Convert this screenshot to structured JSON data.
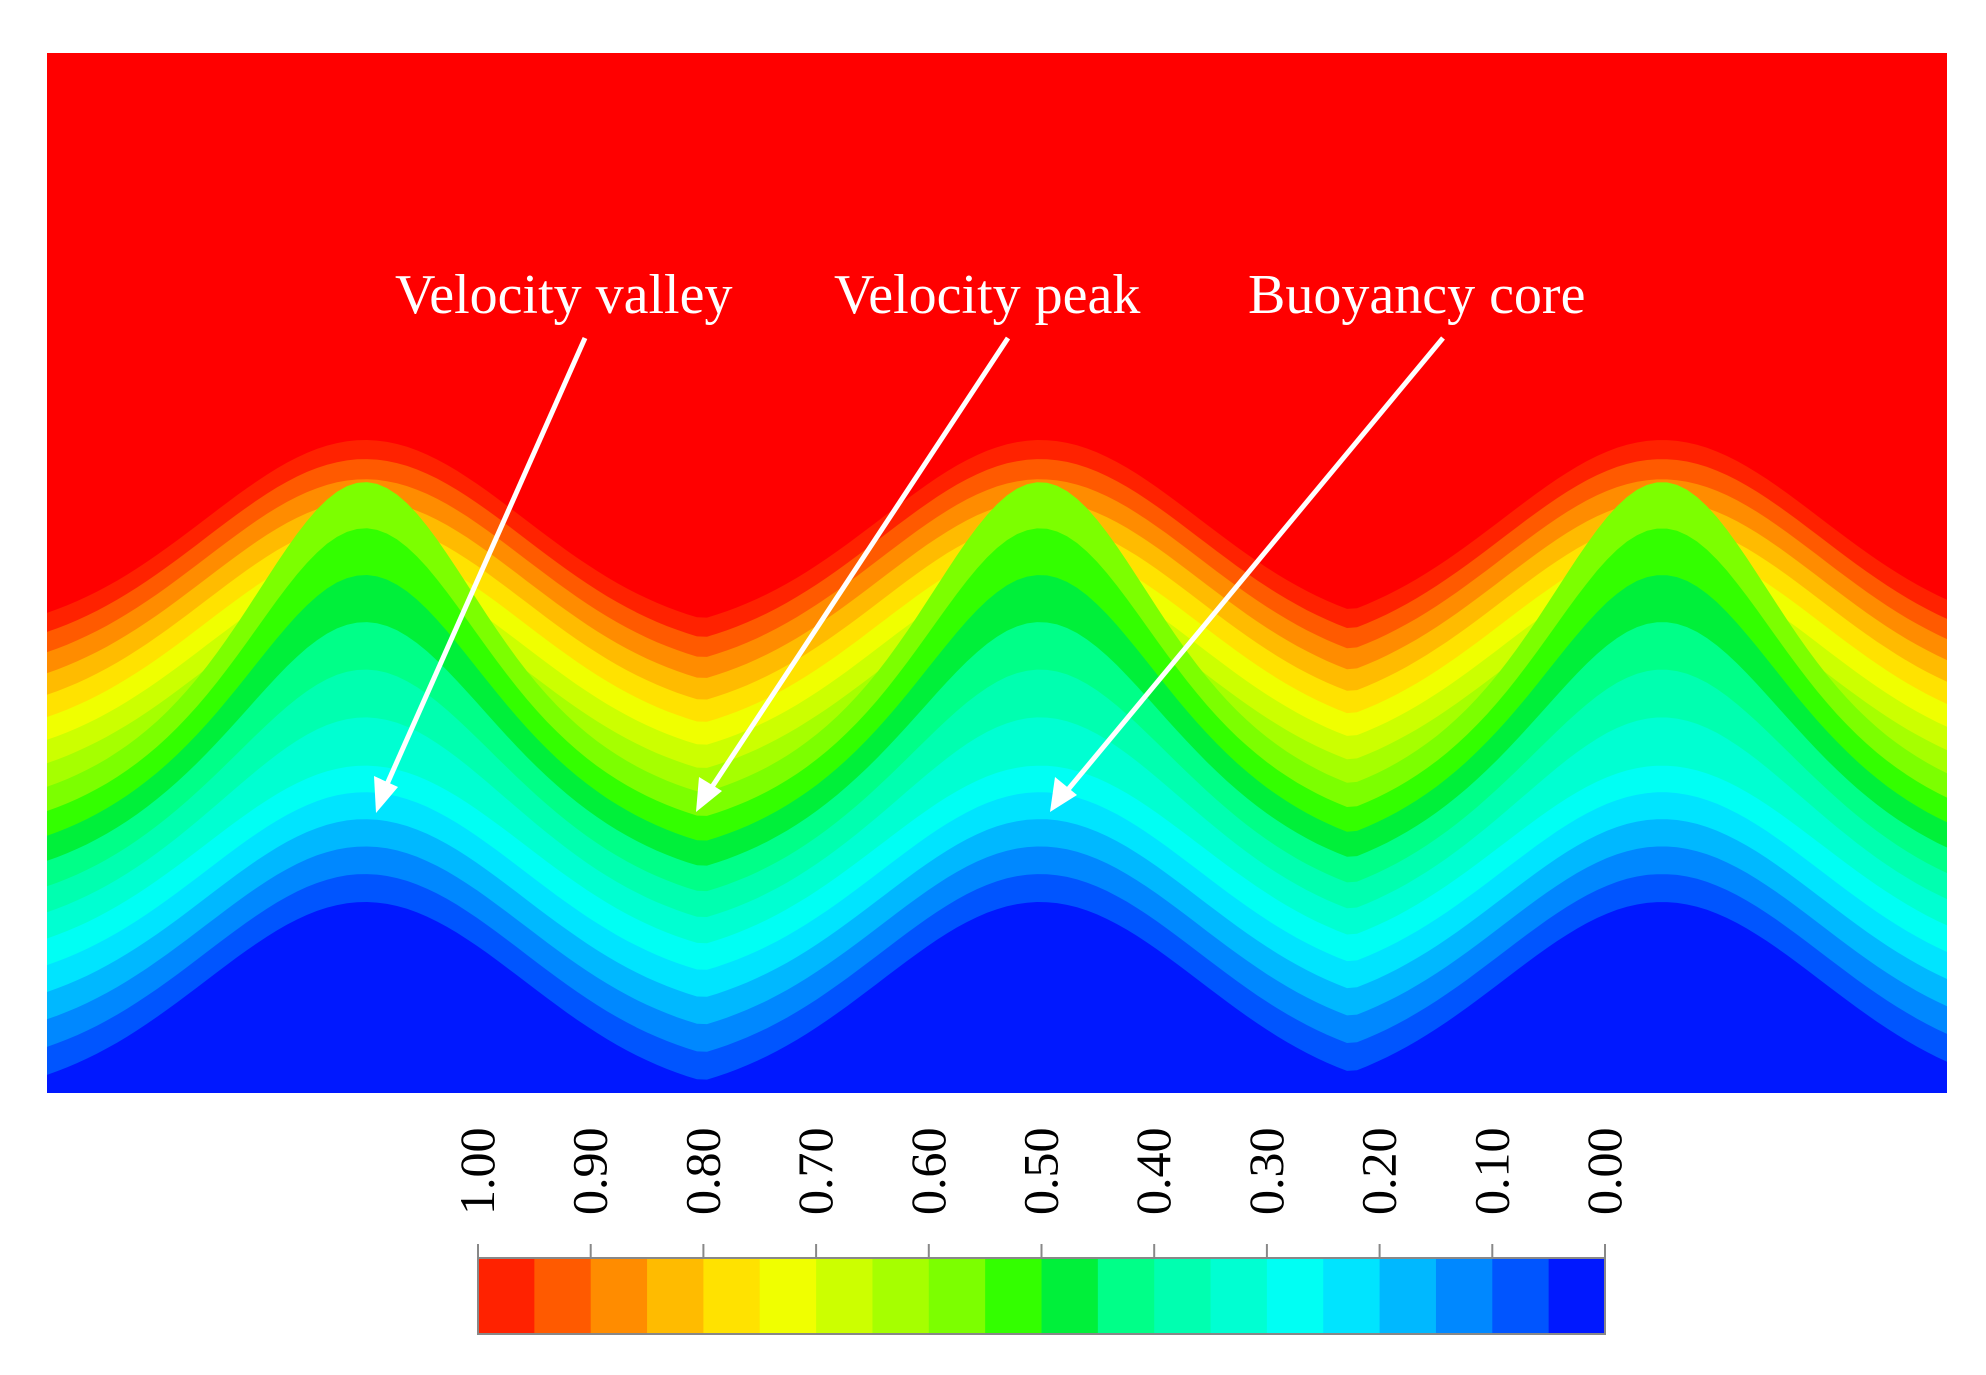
{
  "chart_data": {
    "type": "heatmap",
    "title": "",
    "xlabel": "",
    "ylabel": "",
    "grid": false,
    "colorbar": {
      "orientation": "horizontal",
      "placement": "bottom",
      "range": [
        1.0,
        0.0
      ],
      "tick_labels": [
        "1.00",
        "0.90",
        "0.80",
        "0.70",
        "0.60",
        "0.50",
        "0.40",
        "0.30",
        "0.20",
        "0.10",
        "0.00"
      ],
      "levels": 20,
      "level_colors": [
        "#ff2200",
        "#ff5a00",
        "#ff8c00",
        "#ffbb00",
        "#ffe200",
        "#f0ff00",
        "#ccff00",
        "#a6ff00",
        "#7cff00",
        "#33ff00",
        "#00f03a",
        "#00ff88",
        "#00ffb0",
        "#00ffd2",
        "#00fff4",
        "#00e4ff",
        "#00b8ff",
        "#0088ff",
        "#0055ff",
        "#0018ff"
      ]
    },
    "field": {
      "background_value": 1.0,
      "background_color": "#ff0000",
      "wall_value": 0.0,
      "cell_count": 3,
      "core_value": 0.35
    },
    "annotations": [
      {
        "label": "Velocity valley",
        "points_to": "rising plume core of the left cell"
      },
      {
        "label": "Velocity peak",
        "points_to": "downward trough between left and middle cells"
      },
      {
        "label": "Buoyancy core",
        "points_to": "core of the middle cell"
      }
    ]
  }
}
